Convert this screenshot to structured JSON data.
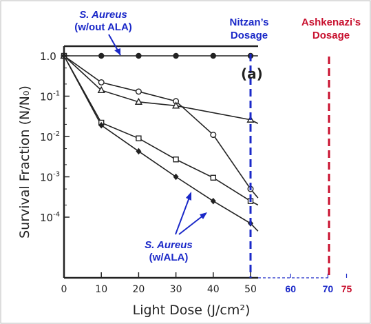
{
  "chart_data": {
    "type": "scatter",
    "xlabel": "Light Dose (J/cm²)",
    "ylabel": "Survival Fraction (N/N₀)",
    "ylog": true,
    "xlim": [
      0,
      53
    ],
    "ylim": [
      3e-05,
      1.8
    ],
    "x_ticks": [
      "0",
      "10",
      "20",
      "30",
      "40",
      "50"
    ],
    "y_ticks": [
      "1.0",
      "10",
      "10",
      "10",
      "10"
    ],
    "y_tick_exponents": [
      "",
      "-1",
      "-2",
      "-3",
      "-4"
    ],
    "extra_x_ticks": [
      "60",
      "70",
      "75"
    ],
    "panel_label": "(a)",
    "series": [
      {
        "marker": "circle-filled",
        "x": [
          0,
          10,
          20,
          30,
          40,
          50
        ],
        "y": [
          1,
          1,
          1,
          1,
          1,
          1
        ]
      },
      {
        "marker": "circle-open",
        "x": [
          0,
          10,
          20,
          30,
          40,
          50
        ],
        "y": [
          1,
          0.22,
          0.13,
          0.075,
          0.011,
          0.0005
        ]
      },
      {
        "marker": "triangle-open",
        "x": [
          0,
          10,
          20,
          30,
          50
        ],
        "y": [
          1,
          0.14,
          0.072,
          0.058,
          0.026
        ]
      },
      {
        "marker": "square-open",
        "x": [
          0,
          10,
          20,
          30,
          40,
          50
        ],
        "y": [
          1,
          0.022,
          0.009,
          0.0027,
          0.00095,
          0.00025
        ]
      },
      {
        "marker": "diamond-filled",
        "x": [
          0,
          10,
          20,
          30,
          40,
          50
        ],
        "y": [
          1,
          0.019,
          0.0043,
          0.001,
          0.00025,
          7e-05
        ]
      }
    ],
    "annotations": {
      "top_left_1": "S. Aureus",
      "top_left_2": "(w/out ALA)",
      "bottom_1": "S. Aureus",
      "bottom_2": "(w/ALA)",
      "nitzan_1": "Nitzan’s",
      "nitzan_2": "Dosage",
      "ashkenazi_1": "Ashkenazi’s",
      "ashkenazi_2": "Dosage"
    },
    "colors": {
      "blue": "#1a28c8",
      "red": "#c8102e",
      "ink": "#222222"
    }
  }
}
